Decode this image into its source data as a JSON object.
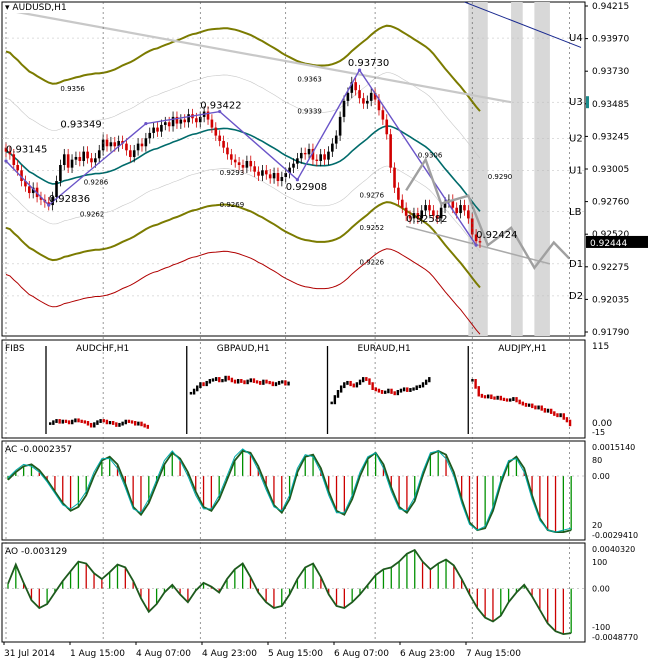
{
  "window": {
    "title": "AUDUSD,H1"
  },
  "colors": {
    "bg": "#ffffff",
    "frame": "#000000",
    "grid": "#c8c8c8",
    "bull": "#000000",
    "bear": "#d00000",
    "ma_olive": "#7b7b00",
    "ma_teal": "#006b6b",
    "ma_red": "#b00000",
    "wave": "#6a54c8",
    "proj": "#a0a0a0",
    "zone": "#d8d8d8",
    "navy": "#1a2a90",
    "ac_line": "#1e5a1e",
    "ac_signal": "#00aaaa",
    "bar_green": "#009000",
    "bar_red": "#cc0000"
  },
  "chart_data": [
    {
      "type": "candlestick",
      "title": "AUDUSD,H1",
      "ylim": [
        0.9174,
        0.9424
      ],
      "y_ticks": [
        "0.94215",
        "0.93970",
        "0.93730",
        "0.93485",
        "0.93245",
        "0.93005",
        "0.92760",
        "0.92520",
        "0.92275",
        "0.92035",
        "0.91790"
      ],
      "current_price": "0.92444",
      "levels": [
        {
          "label": "U4",
          "value": 0.9397
        },
        {
          "label": "U3",
          "value": 0.9349
        },
        {
          "label": "U2",
          "value": 0.9322
        },
        {
          "label": "U1",
          "value": 0.9298
        },
        {
          "label": "LB",
          "value": 0.9267
        },
        {
          "label": "D1",
          "value": 0.9228
        },
        {
          "label": "D2",
          "value": 0.9204
        }
      ],
      "swing_labels": [
        {
          "t": "0.93145",
          "x": 0,
          "y": 0.9309
        },
        {
          "t": "0.93349",
          "x": 14,
          "y": 0.9328
        },
        {
          "t": "0.92836",
          "x": 11,
          "y": 0.9272
        },
        {
          "t": "0.93422",
          "x": 50,
          "y": 0.9342
        },
        {
          "t": "0.92908",
          "x": 72,
          "y": 0.9281
        },
        {
          "t": "0.93730",
          "x": 88,
          "y": 0.9374
        },
        {
          "t": "0.92582",
          "x": 103,
          "y": 0.9257
        },
        {
          "t": "0.92424",
          "x": 121,
          "y": 0.9245
        }
      ],
      "fib_labels": [
        {
          "t": "0.9356",
          "x": 14,
          "y": 0.9356
        },
        {
          "t": "0.9286",
          "x": 20,
          "y": 0.9286
        },
        {
          "t": "0.9262",
          "x": 19,
          "y": 0.9262
        },
        {
          "t": "0.9363",
          "x": 75,
          "y": 0.9363
        },
        {
          "t": "0.9339",
          "x": 75,
          "y": 0.9339
        },
        {
          "t": "0.9293",
          "x": 55,
          "y": 0.9293
        },
        {
          "t": "0.9269",
          "x": 55,
          "y": 0.9269
        },
        {
          "t": "0.9306",
          "x": 106,
          "y": 0.9306
        },
        {
          "t": "0.9276",
          "x": 91,
          "y": 0.9276
        },
        {
          "t": "0.9252",
          "x": 91,
          "y": 0.9252
        },
        {
          "t": "0.9290",
          "x": 124,
          "y": 0.929
        },
        {
          "t": "0.9226",
          "x": 91,
          "y": 0.9226
        }
      ],
      "wave_points": [
        [
          0,
          0.9305
        ],
        [
          11,
          0.9272
        ],
        [
          36,
          0.9333
        ],
        [
          55,
          0.9342
        ],
        [
          75,
          0.9291
        ],
        [
          91,
          0.9373
        ],
        [
          121,
          0.9242
        ]
      ],
      "projection_points": [
        [
          103,
          0.9283
        ],
        [
          108,
          0.9306
        ],
        [
          112,
          0.9273
        ],
        [
          119,
          0.9279
        ],
        [
          124,
          0.9242
        ],
        [
          130,
          0.9255
        ],
        [
          136,
          0.9225
        ],
        [
          141,
          0.9244
        ],
        [
          145,
          0.9232
        ]
      ],
      "trendline": {
        "x1": 0,
        "y1": 0.9418,
        "x2": 130,
        "y2": 0.9349
      },
      "navy_line": {
        "x1": 118,
        "y1": 0.9424,
        "x2": 148,
        "y2": 0.939
      },
      "lower_channel": {
        "x1": 103,
        "y1": 0.9256,
        "x2": 140,
        "y2": 0.9228
      },
      "vert_dotted_at": [
        0,
        25,
        50,
        72,
        95,
        120,
        145
      ],
      "shade_columns": [
        [
          119,
          124
        ],
        [
          130,
          133
        ],
        [
          136,
          140
        ]
      ],
      "series_close": [
        0.9312,
        0.931,
        0.9302,
        0.9298,
        0.929,
        0.9286,
        0.9281,
        0.9285,
        0.9278,
        0.9276,
        0.9274,
        0.9272,
        0.9278,
        0.929,
        0.9302,
        0.931,
        0.93,
        0.9306,
        0.9308,
        0.9305,
        0.9312,
        0.9307,
        0.9304,
        0.9307,
        0.9313,
        0.9321,
        0.9316,
        0.9319,
        0.9316,
        0.932,
        0.9318,
        0.9313,
        0.9308,
        0.9313,
        0.9318,
        0.9316,
        0.9322,
        0.9326,
        0.933,
        0.9327,
        0.9332,
        0.9334,
        0.9331,
        0.9338,
        0.9333,
        0.9336,
        0.9334,
        0.934,
        0.9337,
        0.9334,
        0.9338,
        0.9342,
        0.9336,
        0.933,
        0.9324,
        0.932,
        0.9315,
        0.931,
        0.9306,
        0.9304,
        0.9302,
        0.93,
        0.9305,
        0.9301,
        0.9297,
        0.9294,
        0.9298,
        0.9295,
        0.9292,
        0.9296,
        0.929,
        0.9293,
        0.9296,
        0.93,
        0.9303,
        0.9307,
        0.9311,
        0.931,
        0.9314,
        0.9306,
        0.9305,
        0.931,
        0.9306,
        0.9312,
        0.9318,
        0.9324,
        0.9338,
        0.935,
        0.9356,
        0.9364,
        0.9358,
        0.9352,
        0.9348,
        0.935,
        0.9356,
        0.9351,
        0.9343,
        0.9336,
        0.9325,
        0.93,
        0.9285,
        0.9276,
        0.927,
        0.9264,
        0.9262,
        0.9266,
        0.9262,
        0.9268,
        0.9272,
        0.9268,
        0.9264,
        0.9262,
        0.927,
        0.9274,
        0.9276,
        0.927,
        0.9266,
        0.9272,
        0.9268,
        0.9262,
        0.925,
        0.9245,
        0.9244
      ]
    },
    {
      "type": "candlestick",
      "name": "FIBS",
      "panels": [
        {
          "title": "AUDCHF,H1",
          "closes": [
            -2,
            1,
            3,
            0,
            2,
            1,
            -1,
            2,
            4,
            2,
            1,
            0,
            -3,
            -6,
            -2,
            1,
            3,
            2,
            -1,
            0,
            -2,
            -5,
            -3,
            -1,
            2,
            1,
            0,
            -3,
            -1,
            -4,
            -6,
            -8
          ]
        },
        {
          "title": "GBPAUD,H1",
          "closes": [
            45,
            50,
            55,
            60,
            58,
            62,
            65,
            66,
            68,
            64,
            65,
            70,
            67,
            64,
            62,
            65,
            63,
            61,
            64,
            66,
            63,
            62,
            60,
            64,
            62,
            61,
            58,
            60,
            62,
            63,
            59,
            61
          ]
        },
        {
          "title": "EURAUD,H1",
          "closes": [
            30,
            40,
            48,
            55,
            60,
            62,
            58,
            56,
            60,
            64,
            68,
            66,
            60,
            52,
            50,
            48,
            46,
            47,
            50,
            46,
            44,
            48,
            50,
            52,
            49,
            51,
            52,
            55,
            56,
            60,
            64,
            68
          ]
        },
        {
          "title": "AUDJPY,H1",
          "closes": [
            65,
            54,
            42,
            40,
            39,
            41,
            38,
            37,
            39,
            36,
            35,
            34,
            35,
            37,
            33,
            30,
            28,
            26,
            27,
            24,
            22,
            24,
            20,
            17,
            19,
            15,
            12,
            10,
            12,
            6,
            2,
            -4
          ]
        }
      ],
      "ylim_labels": [
        "115",
        "0.00",
        "-15"
      ]
    },
    {
      "type": "line",
      "name": "AC -0.0002357",
      "y_labels": [
        "0.0015140",
        "80",
        "0.00",
        "20",
        "-0.0029410"
      ],
      "series": [
        {
          "values": [
            -0.0002,
            0.0002,
            0.0005,
            0.0006,
            0.0003,
            -0.0002,
            -0.0008,
            -0.0014,
            -0.0018,
            -0.0016,
            -0.001,
            0.0,
            0.0008,
            0.001,
            0.0006,
            -0.0004,
            -0.0016,
            -0.002,
            -0.0014,
            -0.0004,
            0.0006,
            0.0012,
            0.0009,
            0.0002,
            -0.0008,
            -0.0016,
            -0.0018,
            -0.0012,
            -0.0002,
            0.0008,
            0.0013,
            0.0012,
            0.0005,
            -0.0005,
            -0.0015,
            -0.0019,
            -0.0012,
            0.0002,
            0.001,
            0.0011,
            0.0004,
            -0.0008,
            -0.0018,
            -0.002,
            -0.0012,
            0.0,
            0.0009,
            0.0012,
            0.0006,
            -0.0006,
            -0.0016,
            -0.0019,
            -0.0013,
            0.0,
            0.0011,
            0.0013,
            0.0011,
            0.0002,
            -0.0012,
            -0.0024,
            -0.0028,
            -0.0027,
            -0.0018,
            -0.0004,
            0.0007,
            0.001,
            0.0004,
            -0.001,
            -0.0022,
            -0.0028,
            -0.0029,
            -0.0029,
            -0.0028
          ]
        },
        {
          "values": [
            -0.0001,
            0.0003,
            0.0006,
            0.0005,
            0.0002,
            -0.0003,
            -0.0009,
            -0.0015,
            -0.0017,
            -0.0014,
            -0.0008,
            0.0002,
            0.0009,
            0.0009,
            0.0004,
            -0.0006,
            -0.0017,
            -0.0019,
            -0.0012,
            -0.0002,
            0.0008,
            0.0013,
            0.0008,
            0.0,
            -0.001,
            -0.0017,
            -0.0017,
            -0.001,
            0.0,
            0.001,
            0.0014,
            0.0011,
            0.0003,
            -0.0007,
            -0.0016,
            -0.0018,
            -0.001,
            0.0004,
            0.0011,
            0.001,
            0.0002,
            -0.001,
            -0.0019,
            -0.0019,
            -0.001,
            0.0002,
            0.001,
            0.0012,
            0.0004,
            -0.0008,
            -0.0017,
            -0.0018,
            -0.0011,
            0.0002,
            0.0012,
            0.0013,
            0.0009,
            0.0,
            -0.0014,
            -0.0025,
            -0.0028,
            -0.0026,
            -0.0016,
            -0.0002,
            0.0008,
            0.0009,
            0.0002,
            -0.0012,
            -0.0023,
            -0.0028,
            -0.0029,
            -0.0028,
            -0.0027
          ]
        }
      ]
    },
    {
      "type": "line",
      "name": "AO -0.003129",
      "y_labels": [
        "0.0040320",
        "100",
        "0.00",
        "-100",
        "-0.0048770"
      ],
      "series": [
        {
          "values": [
            0.0005,
            0.0025,
            0.0006,
            -0.0012,
            -0.002,
            -0.0016,
            -0.0004,
            0.0008,
            0.0018,
            0.0028,
            0.0026,
            0.0016,
            0.001,
            0.0017,
            0.0025,
            0.0022,
            0.0008,
            -0.001,
            -0.0024,
            -0.0016,
            -0.0004,
            0.0004,
            -0.0006,
            -0.0014,
            -0.0002,
            0.0006,
            0.0002,
            -0.0004,
            0.001,
            0.002,
            0.0026,
            0.0012,
            -0.0004,
            -0.0014,
            -0.002,
            -0.0018,
            -0.0006,
            0.001,
            0.0022,
            0.0026,
            0.0012,
            -0.0006,
            -0.0018,
            -0.002,
            -0.0014,
            -0.0006,
            0.0004,
            0.0014,
            0.002,
            0.0022,
            0.0028,
            0.0036,
            0.004,
            0.0028,
            0.002,
            0.0026,
            0.003,
            0.0024,
            0.001,
            -0.0006,
            -0.002,
            -0.003,
            -0.0034,
            -0.0028,
            -0.0014,
            -0.0004,
            0.0004,
            -0.0008,
            -0.0022,
            -0.0036,
            -0.0044,
            -0.0047,
            -0.0046
          ]
        }
      ]
    }
  ],
  "x_axis": {
    "labels": [
      "31 Jul 2014",
      "1 Aug 15:00",
      "4 Aug 07:00",
      "4 Aug 23:00",
      "5 Aug 15:00",
      "6 Aug 07:00",
      "6 Aug 23:00",
      "7 Aug 15:00"
    ]
  }
}
